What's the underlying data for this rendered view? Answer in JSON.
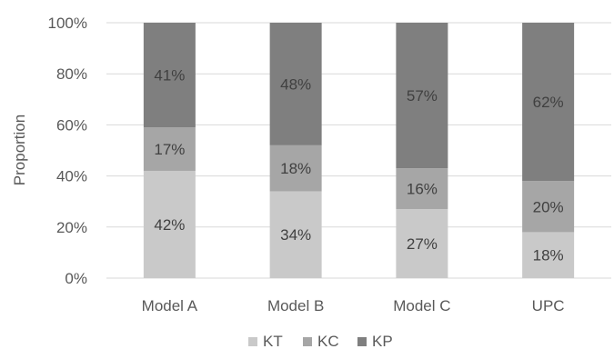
{
  "chart_data": {
    "type": "bar",
    "stacked": true,
    "categories": [
      "Model A",
      "Model B",
      "Model C",
      "UPC"
    ],
    "series": [
      {
        "name": "KT",
        "values": [
          42,
          34,
          27,
          18
        ],
        "color": "#c9c9c9",
        "labels": [
          "42%",
          "34%",
          "27%",
          "18%"
        ]
      },
      {
        "name": "KC",
        "values": [
          17,
          18,
          16,
          20
        ],
        "color": "#a6a6a6",
        "labels": [
          "17%",
          "18%",
          "16%",
          "20%"
        ]
      },
      {
        "name": "KP",
        "values": [
          41,
          48,
          57,
          62
        ],
        "color": "#7f7f7f",
        "labels": [
          "41%",
          "48%",
          "57%",
          "62%"
        ]
      }
    ],
    "ylabel": "Proportion",
    "ylim": [
      0,
      100
    ],
    "yticks": [
      0,
      20,
      40,
      60,
      80,
      100
    ],
    "ytick_labels": [
      "0%",
      "20%",
      "40%",
      "60%",
      "80%",
      "100%"
    ],
    "grid": true,
    "legend_position": "bottom-center",
    "colors": {
      "grid": "#d9d9d9",
      "text": "#595959",
      "data_label": "#404040"
    }
  }
}
